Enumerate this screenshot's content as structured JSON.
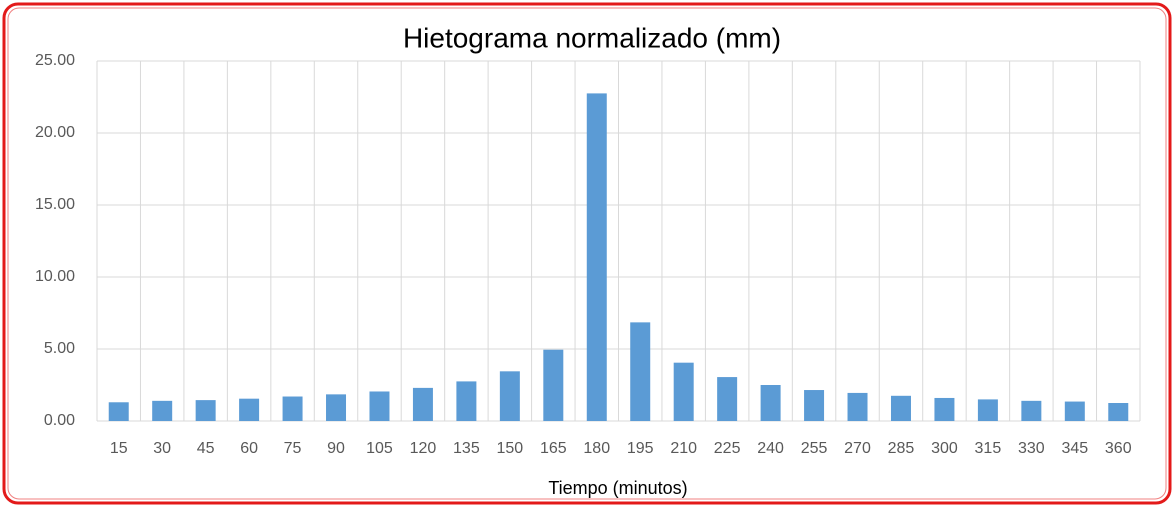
{
  "chart_data": {
    "type": "bar",
    "title": "Hietograma normalizado  (mm)",
    "x_label": "Tiempo (minutos)",
    "categories": [
      "15",
      "30",
      "45",
      "60",
      "75",
      "90",
      "105",
      "120",
      "135",
      "150",
      "165",
      "180",
      "195",
      "210",
      "225",
      "240",
      "255",
      "270",
      "285",
      "300",
      "315",
      "330",
      "345",
      "360"
    ],
    "values": [
      1.3,
      1.4,
      1.45,
      1.55,
      1.7,
      1.85,
      2.05,
      2.3,
      2.75,
      3.45,
      4.95,
      22.75,
      6.85,
      4.05,
      3.05,
      2.5,
      2.15,
      1.95,
      1.75,
      1.6,
      1.5,
      1.4,
      1.35,
      1.25
    ],
    "color": "#5b9bd5",
    "ylim": [
      0,
      25
    ],
    "yticks": [
      {
        "value": 0,
        "label": "0.00"
      },
      {
        "value": 5,
        "label": "5.00"
      },
      {
        "value": 10,
        "label": "10.00"
      },
      {
        "value": 15,
        "label": "15.00"
      },
      {
        "value": 20,
        "label": "20.00"
      },
      {
        "value": 25,
        "label": "25.00"
      }
    ],
    "grid": true
  }
}
